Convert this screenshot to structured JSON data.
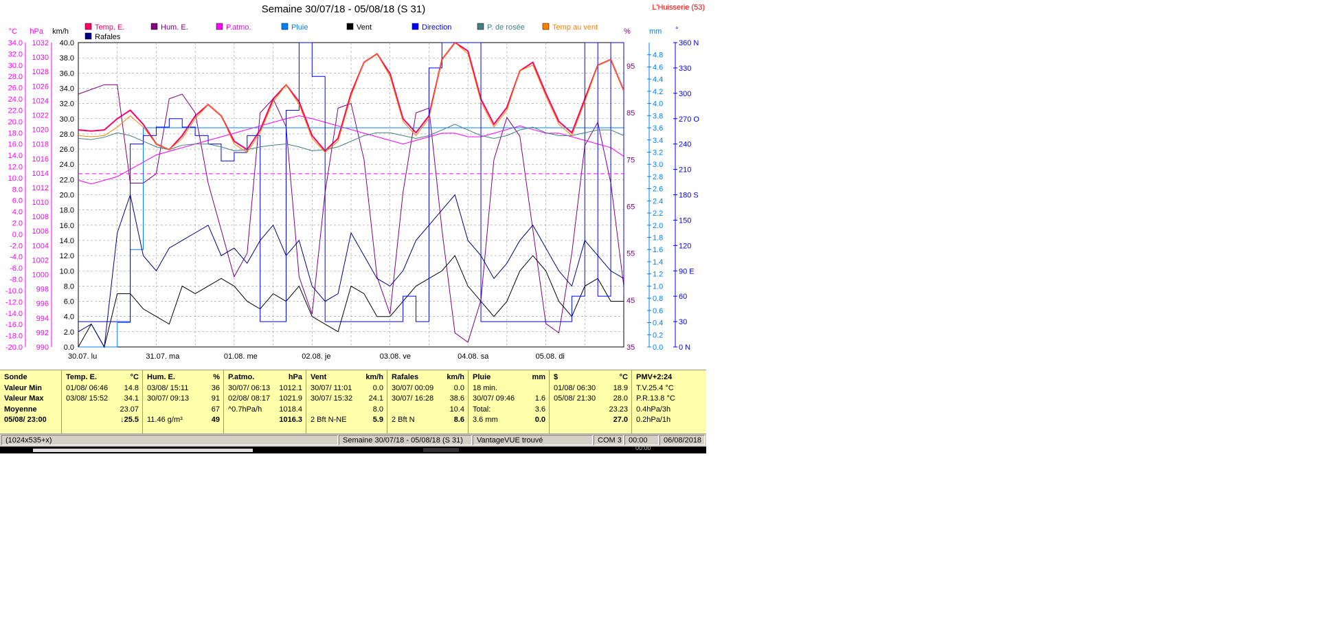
{
  "window": {
    "title": "Semaine 30/07/18 - 05/08/18 (S 31)",
    "station": "L'Huisserie (53)"
  },
  "legend": [
    {
      "label": "Temp. E.",
      "color": "#ff0066"
    },
    {
      "label": "Hum. E.",
      "color": "#800080"
    },
    {
      "label": "P.atmo.",
      "color": "#ff00ff"
    },
    {
      "label": "Pluie",
      "color": "#0080ff"
    },
    {
      "label": "Vent",
      "color": "#000000"
    },
    {
      "label": "Direction",
      "color": "#0000ff"
    },
    {
      "label": "P. de rosée",
      "color": "#408080"
    },
    {
      "label": "Temp au vent",
      "color": "#ff8000"
    },
    {
      "label": "Rafales",
      "color": "#000080"
    }
  ],
  "axis_units": {
    "temp": "°C",
    "press": "hPa",
    "wind": "km/h",
    "hum": "%",
    "rain": "mm",
    "dir": "°"
  },
  "chart_data": {
    "type": "line",
    "title": "Semaine 30/07/18 - 05/08/18 (S 31)",
    "x_labels": [
      "30.07.  lu",
      "31.07.  ma",
      "01.08.  me",
      "02.08.  je",
      "03.08.  ve",
      "04.08.  sa",
      "05.08.  di"
    ],
    "x": [
      0,
      4,
      8,
      12,
      16,
      20,
      24,
      28,
      32,
      36,
      40,
      44,
      48,
      52,
      56,
      60,
      64,
      68,
      72,
      76,
      80,
      84,
      88,
      92,
      96,
      100,
      104,
      108,
      112,
      116,
      120,
      124,
      128,
      132,
      136,
      140,
      144,
      148,
      152,
      156,
      160,
      164,
      168
    ],
    "axes": {
      "temp": {
        "label": "°C",
        "range": [
          -20,
          34
        ],
        "ticks": [
          34.0,
          32.0,
          30.0,
          28.0,
          26.0,
          24.0,
          22.0,
          20.0,
          18.0,
          16.0,
          14.0,
          12.0,
          10.0,
          8.0,
          6.0,
          4.0,
          2.0,
          0.0,
          -2.0,
          -4.0,
          -6.0,
          -8.0,
          -10.0,
          -12.0,
          -14.0,
          -16.0,
          -18.0,
          -20.0
        ]
      },
      "press": {
        "label": "hPa",
        "range": [
          990,
          1032
        ],
        "ticks": [
          1032,
          1030,
          1028,
          1026,
          1024,
          1022,
          1020,
          1018,
          1016,
          1014,
          1012,
          1010,
          1008,
          1006,
          1004,
          1002,
          1000,
          998,
          996,
          994,
          992,
          990
        ]
      },
      "wind": {
        "label": "km/h",
        "range": [
          0,
          40
        ],
        "ticks": [
          40.0,
          38.0,
          36.0,
          34.0,
          32.0,
          30.0,
          28.0,
          26.0,
          24.0,
          22.0,
          20.0,
          18.0,
          16.0,
          14.0,
          12.0,
          10.0,
          8.0,
          6.0,
          4.0,
          2.0,
          0.0
        ]
      },
      "hum": {
        "label": "%",
        "range": [
          35,
          100
        ],
        "ticks": [
          95,
          85,
          75,
          65,
          55,
          45,
          35
        ]
      },
      "rain": {
        "label": "mm",
        "range": [
          0,
          5
        ],
        "ticks": [
          4.8,
          4.6,
          4.4,
          4.2,
          4.0,
          3.8,
          3.6,
          3.4,
          3.2,
          3.0,
          2.8,
          2.6,
          2.4,
          2.2,
          2.0,
          1.8,
          1.6,
          1.4,
          1.2,
          1.0,
          0.8,
          0.6,
          0.4,
          0.2,
          0.0
        ]
      },
      "dir": {
        "label": "°",
        "range": [
          0,
          360
        ],
        "ticks": [
          "360 N",
          "330",
          "300",
          "270 O",
          "240",
          "210",
          "180 S",
          "150",
          "120",
          "90  E",
          "60",
          "30",
          "0    N"
        ]
      }
    },
    "series": [
      {
        "name": "Temp. E.",
        "axis": "temp",
        "color": "#ff0066",
        "values": [
          18.5,
          18.3,
          18.5,
          20.5,
          22.0,
          19.5,
          16.0,
          15.0,
          17.5,
          21.0,
          23.0,
          21.0,
          16.5,
          15.0,
          18.5,
          24.0,
          26.5,
          23.5,
          17.5,
          14.8,
          17.0,
          25.0,
          30.5,
          32.0,
          28.5,
          20.5,
          18.0,
          21.0,
          31.0,
          34.0,
          32.5,
          24.0,
          19.5,
          22.5,
          29.0,
          30.5,
          25.0,
          20.0,
          18.0,
          24.0,
          30.0,
          31.0,
          25.5
        ]
      },
      {
        "name": "Hum. E.",
        "axis": "hum",
        "color": "#800080",
        "values": [
          89,
          90,
          91,
          91,
          70,
          70,
          72,
          88,
          89,
          85,
          70,
          60,
          50,
          55,
          85,
          88,
          82,
          50,
          42,
          68,
          86,
          87,
          75,
          50,
          42,
          68,
          85,
          86,
          60,
          38,
          36,
          45,
          75,
          84,
          80,
          60,
          40,
          38,
          55,
          78,
          83,
          70,
          48
        ]
      },
      {
        "name": "P.atmo.",
        "axis": "press",
        "color": "#ff00ff",
        "values": [
          1013,
          1012.5,
          1013,
          1013.5,
          1014.5,
          1015.5,
          1016.5,
          1017,
          1017.5,
          1018,
          1018.5,
          1019,
          1019.5,
          1020,
          1020.5,
          1021,
          1021.5,
          1021.9,
          1021.5,
          1021,
          1020.5,
          1020,
          1019.5,
          1019,
          1018.5,
          1018,
          1018.5,
          1019,
          1019.5,
          1019.5,
          1019,
          1019,
          1019.5,
          1020,
          1020.5,
          1020,
          1019.5,
          1019.5,
          1019,
          1018.5,
          1018,
          1017.5,
          1016.3
        ]
      },
      {
        "name": "Pluie",
        "axis": "rain",
        "color": "#0080ff",
        "values": [
          0,
          0,
          0,
          0.4,
          1.6,
          3.6,
          3.6,
          3.6,
          3.6,
          3.6,
          3.6,
          3.6,
          3.6,
          3.6,
          3.6,
          3.6,
          3.6,
          3.6,
          3.6,
          3.6,
          3.6,
          3.6,
          3.6,
          3.6,
          3.6,
          3.6,
          3.6,
          3.6,
          3.6,
          3.6,
          3.6,
          3.6,
          3.6,
          3.6,
          3.6,
          3.6,
          3.6,
          3.6,
          3.6,
          3.6,
          3.6,
          3.6,
          3.6
        ]
      },
      {
        "name": "Vent",
        "axis": "wind",
        "color": "#000000",
        "values": [
          0,
          3,
          0,
          7,
          7,
          5,
          4,
          3,
          8,
          7,
          8,
          9,
          8,
          6,
          5,
          7,
          6,
          8,
          4,
          3,
          2,
          8,
          7,
          4,
          4,
          6,
          8,
          9,
          10,
          12,
          8,
          6,
          4,
          6,
          10,
          12,
          10,
          6,
          4,
          8,
          9,
          6,
          6
        ]
      },
      {
        "name": "Direction",
        "axis": "dir",
        "color": "#0000ff",
        "values": [
          30,
          30,
          30,
          30,
          240,
          250,
          260,
          270,
          260,
          250,
          240,
          220,
          230,
          250,
          30,
          30,
          280,
          360,
          320,
          30,
          30,
          30,
          30,
          30,
          30,
          60,
          30,
          330,
          360,
          360,
          360,
          30,
          30,
          30,
          30,
          30,
          30,
          30,
          60,
          360,
          60,
          360,
          60
        ]
      },
      {
        "name": "P. de rosée",
        "axis": "temp",
        "color": "#408080",
        "values": [
          17.0,
          16.8,
          17.2,
          18.0,
          17.5,
          16.5,
          15.5,
          15.0,
          15.8,
          16.0,
          16.0,
          15.5,
          14.8,
          15.0,
          15.5,
          15.8,
          16.0,
          15.5,
          14.8,
          15.0,
          15.5,
          16.5,
          17.5,
          18.0,
          18.0,
          17.5,
          17.0,
          17.5,
          18.5,
          19.5,
          18.5,
          17.5,
          17.0,
          17.5,
          18.5,
          19.0,
          18.0,
          17.5,
          17.5,
          18.0,
          18.5,
          18.5,
          17.5
        ]
      },
      {
        "name": "Temp au vent",
        "axis": "temp",
        "color": "#ff8000",
        "values": [
          17.5,
          17.3,
          17.5,
          19.0,
          21.0,
          19.0,
          16.0,
          15.0,
          17.0,
          20.5,
          23.0,
          21.0,
          16.0,
          14.5,
          18.0,
          23.5,
          26.5,
          23.0,
          17.0,
          14.5,
          16.5,
          24.5,
          30.5,
          32.0,
          28.0,
          20.0,
          17.5,
          20.5,
          31.0,
          34.0,
          32.0,
          23.5,
          19.0,
          22.0,
          29.0,
          30.0,
          24.5,
          19.5,
          17.5,
          23.5,
          30.0,
          31.0,
          25.5
        ]
      },
      {
        "name": "Rafales",
        "axis": "wind",
        "color": "#000080",
        "values": [
          2,
          3,
          0,
          15,
          20,
          12,
          10,
          13,
          14,
          15,
          16,
          12,
          13,
          11,
          14,
          16,
          12,
          14,
          8,
          6,
          7,
          15,
          12,
          9,
          8,
          10,
          14,
          16,
          18,
          20,
          14,
          12,
          9,
          11,
          14,
          16,
          13,
          10,
          8,
          14,
          12,
          10,
          9
        ]
      }
    ]
  },
  "summary": {
    "c0": {
      "h": "Sonde",
      "r1": "Valeur Min",
      "r2": "Valeur Max",
      "r3": "Moyenne",
      "r4": "05/08/ 23:00"
    },
    "c1": {
      "h": "Temp. E.",
      "u": "°C",
      "min_d": "01/08/  06:46",
      "min_v": "14.8",
      "max_d": "03/08/  15:52",
      "max_v": "34.1",
      "avg": "23.07",
      "cur_arrow": "↓",
      "cur": "25.5"
    },
    "c2": {
      "h": "Hum. E.",
      "u": "%",
      "min_d": "03/08/  15:11",
      "min_v": "36",
      "max_d": "30/07/  09:13",
      "max_v": "91",
      "avg": "67",
      "cur_l": "11.46 g/m³",
      "cur": "49"
    },
    "c3": {
      "h": "P.atmo.",
      "u": "hPa",
      "min_d": "30/07/  06:13",
      "min_v": "1012.1",
      "max_d": "02/08/  08:17",
      "max_v": "1021.9",
      "avg_l": "^0.7hPa/h",
      "avg": "1018.4",
      "cur": "1016.3"
    },
    "c4": {
      "h": "Vent",
      "u": "km/h",
      "min_d": "30/07/  11:01",
      "min_v": "0.0",
      "max_d": "30/07/  15:32",
      "max_v": "24.1",
      "avg": "8.0",
      "cur_l": "2 Bft N-NE",
      "cur": "5.9"
    },
    "c5": {
      "h": "Rafales",
      "u": "km/h",
      "min_d": "30/07/  00:09",
      "min_v": "0.0",
      "max_d": "30/07/  16:28",
      "max_v": "38.6",
      "avg": "10.4",
      "cur_l": "2 Bft N",
      "cur": "8.6"
    },
    "c6": {
      "h": "Pluie",
      "u": "mm",
      "min_d": "18 min.",
      "max_d": "30/07/  09:46",
      "max_v": "1.6",
      "avg_l": "Total:",
      "avg": "3.6",
      "cur_l": "3.6 mm",
      "cur": "0.0"
    },
    "c7": {
      "h": "$",
      "u": "°C",
      "min_d": "01/08/  06:30",
      "min_v": "18.9",
      "max_d": "05/08/  21:30",
      "max_v": "28.0",
      "avg": "23.23",
      "cur": "27.0"
    },
    "c8": {
      "h": "PMV+2:24",
      "r1": "T.V.25.4 °C",
      "r2": "P.R.13.8 °C",
      "r3": "0.4hPa/3h",
      "r4": "0.2hPa/1h"
    }
  },
  "status": {
    "size": "(1024x535+x)",
    "period": "Semaine 30/07/18 - 05/08/18 (S 31)",
    "device": "VantageVUE trouvé",
    "port": "COM 3",
    "time": "00:00",
    "date": "06/08/2018"
  },
  "taskbar": {
    "clock": "00:00"
  }
}
